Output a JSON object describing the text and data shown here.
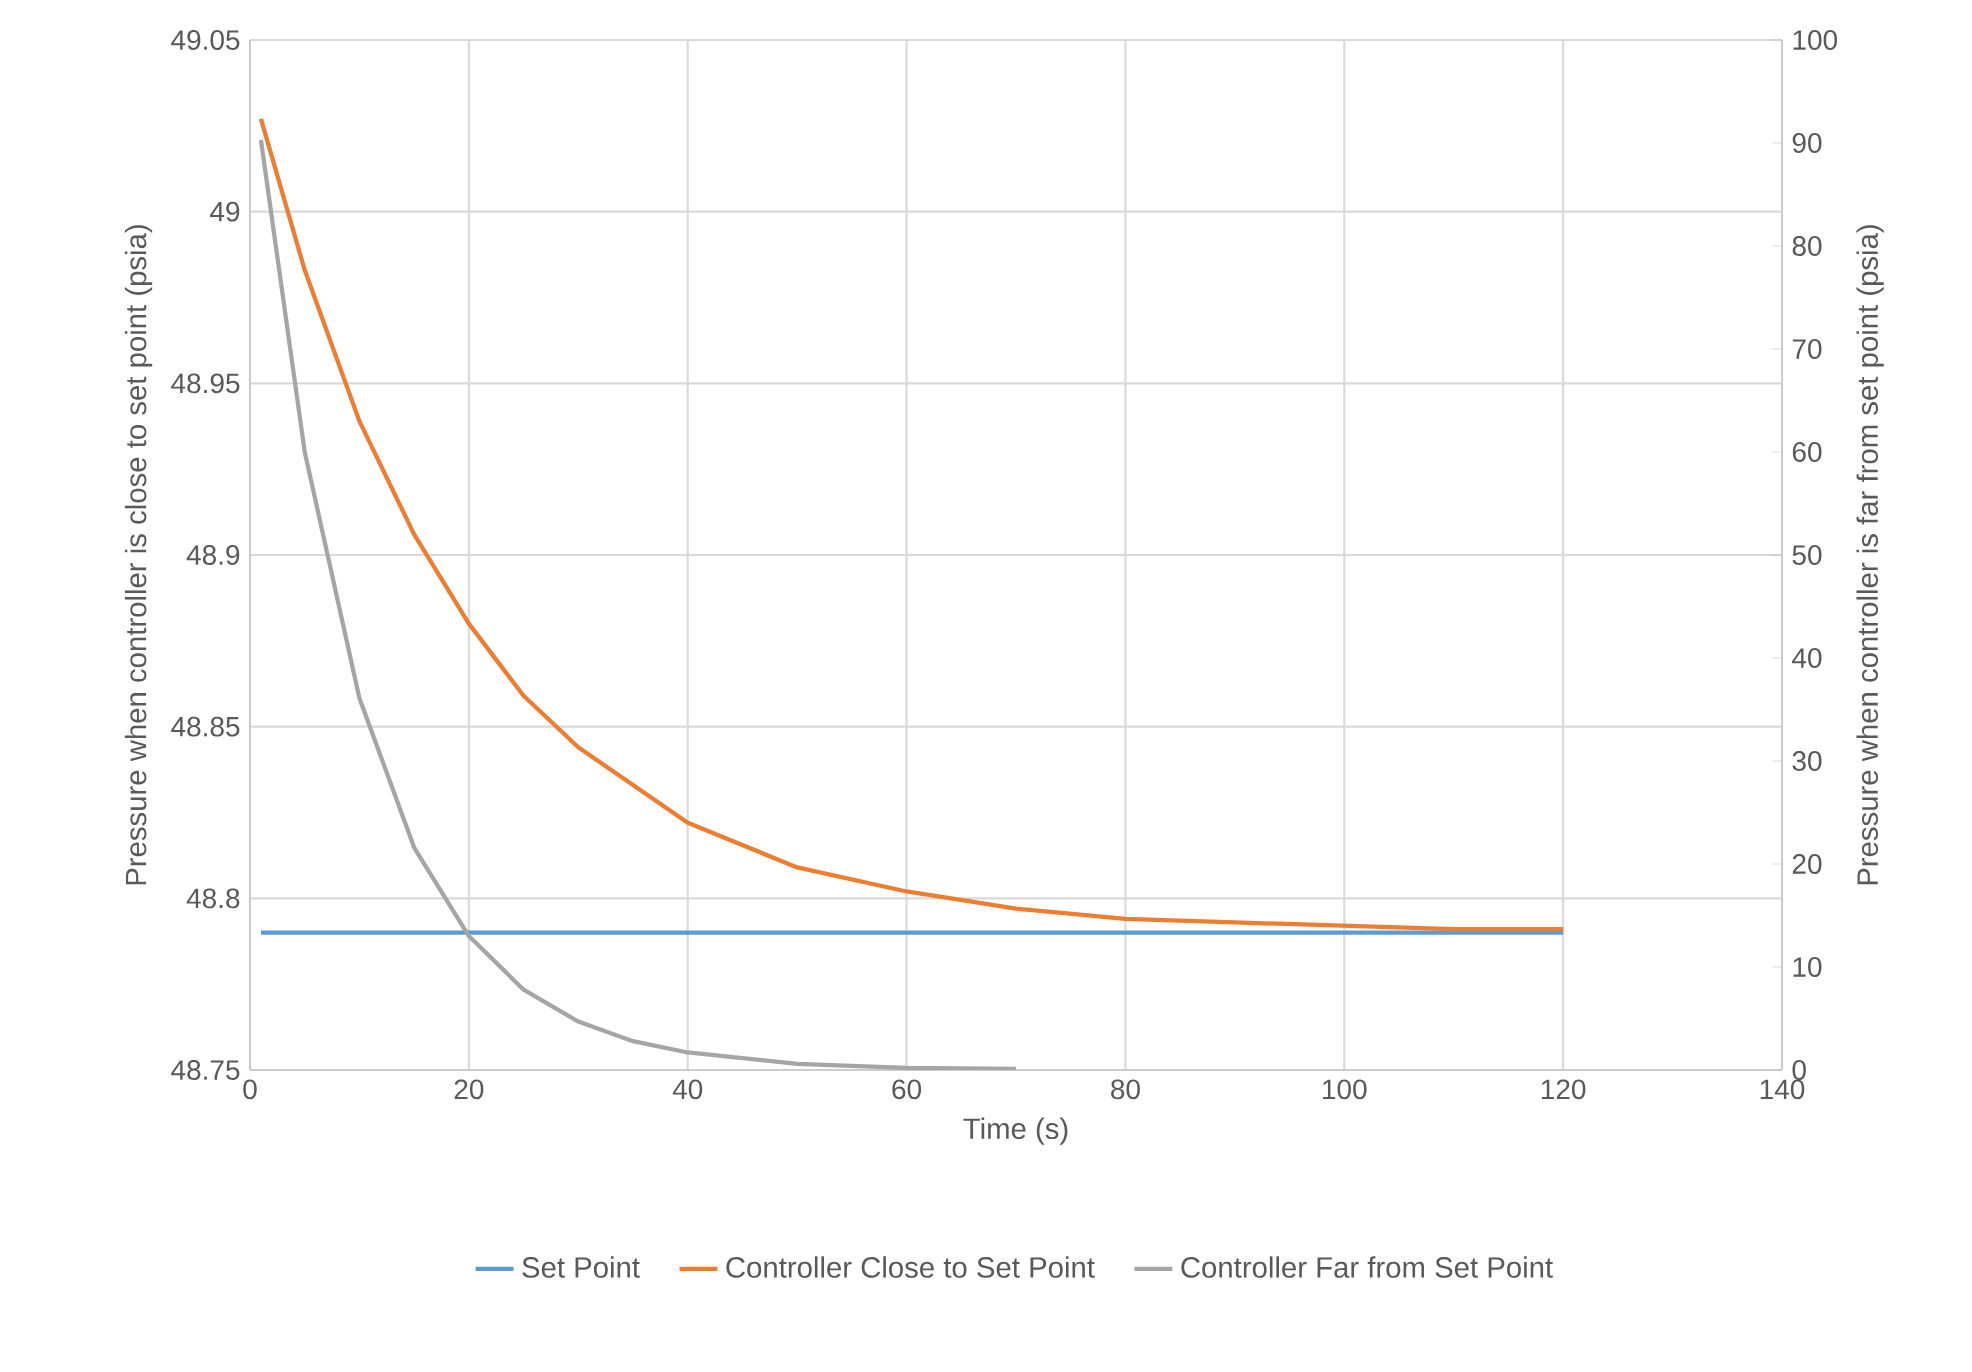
{
  "chart_data": {
    "type": "line",
    "xlabel": "Time (s)",
    "ylabel": "Pressure when controller is close to set point (psia)",
    "y2label": "Pressure when controller is far from set point (psia)",
    "xlim": [
      0,
      140
    ],
    "xticks": [
      0,
      20,
      40,
      60,
      80,
      100,
      120,
      140
    ],
    "ylim": [
      48.75,
      49.05
    ],
    "yticks": [
      48.75,
      48.8,
      48.85,
      48.9,
      48.95,
      49,
      49.05
    ],
    "y2lim": [
      0,
      100
    ],
    "y2ticks": [
      0,
      10,
      20,
      30,
      40,
      50,
      60,
      70,
      80,
      90,
      100
    ],
    "grid": true,
    "legend": "bottom",
    "series": [
      {
        "name": "Set Point",
        "color": "#5b9bd5",
        "x": [
          1,
          120
        ],
        "values": [
          48.79,
          48.79
        ]
      },
      {
        "name": "Controller Close to  Set Point",
        "color": "#ed7d31",
        "x": [
          1,
          5,
          10,
          15,
          20,
          25,
          30,
          40,
          50,
          60,
          70,
          80,
          90,
          100,
          110,
          120
        ],
        "values": [
          49.027,
          48.983,
          48.939,
          48.906,
          48.88,
          48.859,
          48.844,
          48.822,
          48.809,
          48.802,
          48.797,
          48.794,
          48.793,
          48.792,
          48.791,
          48.791
        ]
      },
      {
        "name": "Controller Far from Set Point",
        "color": "#a5a5a5",
        "axis": "y2",
        "x": [
          1,
          5,
          10,
          15,
          20,
          25,
          30,
          35,
          40,
          50,
          60,
          70
        ],
        "values": [
          90.3,
          60.0,
          36.1,
          21.6,
          13.0,
          7.8,
          4.7,
          2.8,
          1.7,
          0.6,
          0.2,
          0.1
        ]
      }
    ]
  }
}
